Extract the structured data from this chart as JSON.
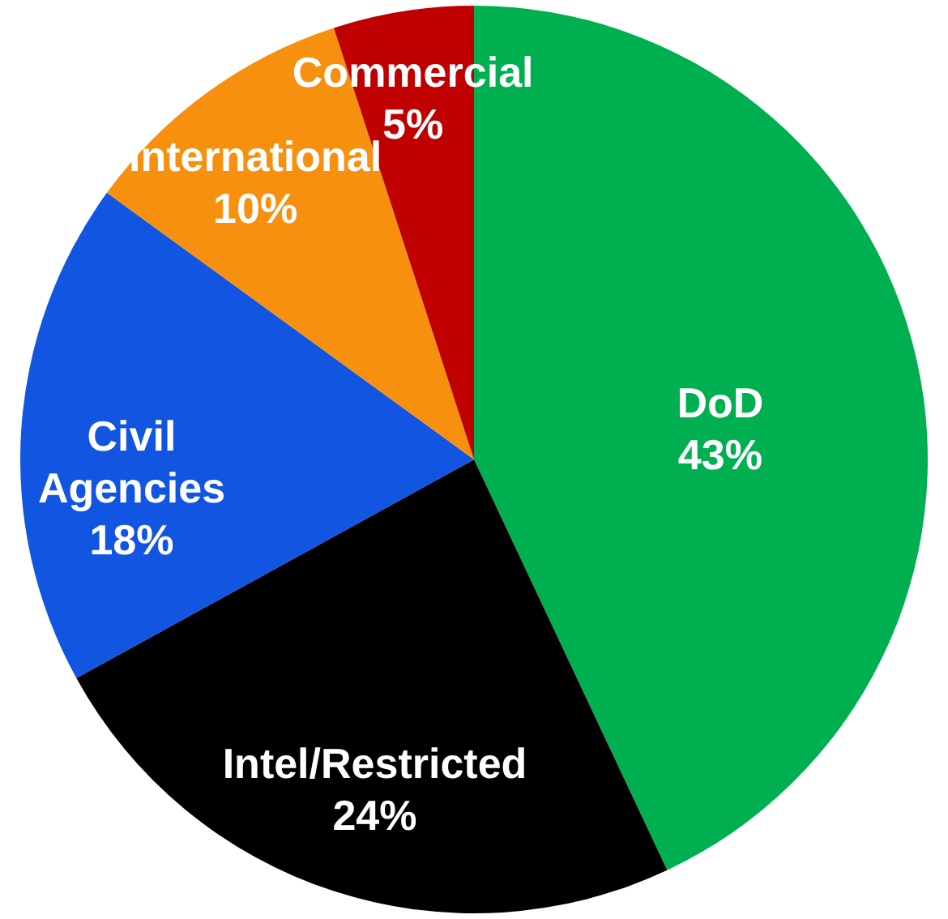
{
  "chart_data": {
    "type": "pie",
    "categories": [
      "DoD",
      "Intel/Restricted",
      "Civil Agencies",
      "International",
      "Commercial"
    ],
    "values": [
      43,
      24,
      18,
      10,
      5
    ],
    "value_labels": [
      "43%",
      "24%",
      "18%",
      "10%",
      "5%"
    ],
    "colors": [
      "#00b050",
      "#000000",
      "#1155e0",
      "#f7900f",
      "#c00000"
    ]
  }
}
